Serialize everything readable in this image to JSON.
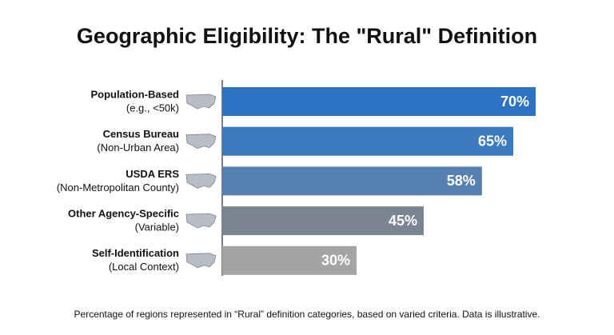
{
  "chart_data": {
    "type": "bar",
    "orientation": "horizontal",
    "title": "Geographic Eligibility: The \"Rural\" Definition",
    "categories": [
      "Population-Based",
      "Census Bureau",
      "USDA ERS",
      "Other Agency-Specific",
      "Self-Identification"
    ],
    "category_notes": [
      "(e.g., <50k)",
      "(Non-Urban Area)",
      "(Non-Metropolitan County)",
      "(Variable)",
      "(Local Context)"
    ],
    "values": [
      70,
      65,
      58,
      45,
      30
    ],
    "value_labels": [
      "70%",
      "65%",
      "58%",
      "45%",
      "30%"
    ],
    "colors": [
      "#2e72c3",
      "#3a7bbf",
      "#5680af",
      "#7b8591",
      "#a4a4a4"
    ],
    "footnote": "Percentage of regions represented in “Rural” definition categories, based on varied criteria. Data is illustrative."
  }
}
